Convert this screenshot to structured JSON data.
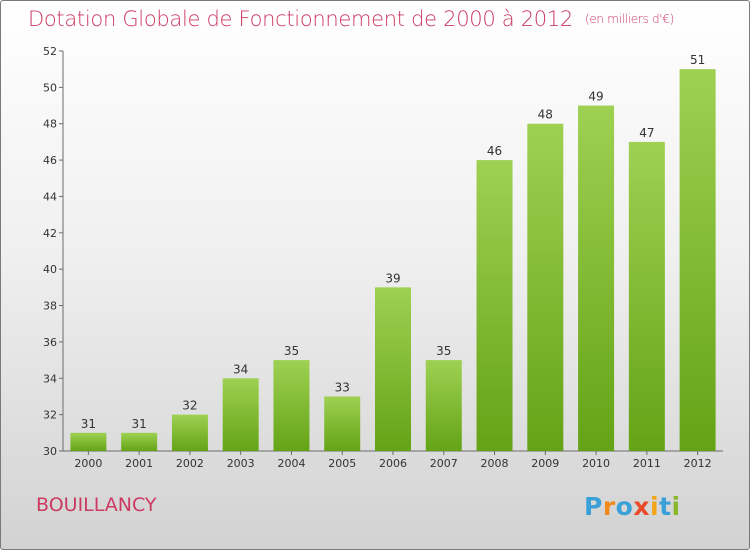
{
  "header": {
    "title": "Dotation Globale de Fonctionnement de 2000 à 2012",
    "unit": "(en milliers d'€)"
  },
  "footer": {
    "place": "BOUILLANCY",
    "logo": "Proxiti"
  },
  "colors": {
    "accent": "#cc3a64",
    "bar_top": "#9ed152",
    "bar_bottom": "#64a316"
  },
  "chart_data": {
    "type": "bar",
    "title": "Dotation Globale de Fonctionnement de 2000 à 2012",
    "subtitle": "(en milliers d'€)",
    "xlabel": "",
    "ylabel": "",
    "categories": [
      "2000",
      "2001",
      "2002",
      "2003",
      "2004",
      "2005",
      "2006",
      "2007",
      "2008",
      "2009",
      "2010",
      "2011",
      "2012"
    ],
    "values": [
      31,
      31,
      32,
      34,
      35,
      33,
      39,
      35,
      46,
      48,
      49,
      47,
      51
    ],
    "ylim": [
      30,
      52
    ],
    "yticks": [
      30,
      32,
      34,
      36,
      38,
      40,
      42,
      44,
      46,
      48,
      50,
      52
    ],
    "grid": false,
    "data_labels": true
  }
}
